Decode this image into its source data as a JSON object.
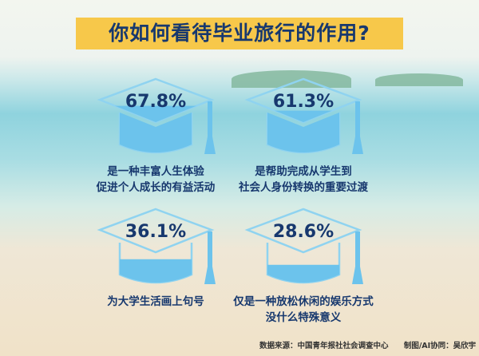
{
  "title": "你如何看待毕业旅行的作用?",
  "chart_data": {
    "type": "bar",
    "title": "你如何看待毕业旅行的作用?",
    "categories": [
      "是一种丰富人生体验 促进个人成长的有益活动",
      "是帮助完成从学生到 社会人身份转换的重要过渡",
      "为大学生活画上句号",
      "仅是一种放松休闲的娱乐方式 没什么特殊意义"
    ],
    "values": [
      67.8,
      61.3,
      36.1,
      28.6
    ],
    "unit": "%",
    "items": [
      {
        "pct": "67.8%",
        "line1": "是一种丰富人生体验",
        "line2": "促进个人成长的有益活动"
      },
      {
        "pct": "61.3%",
        "line1": "是帮助完成从学生到",
        "line2": "社会人身份转换的重要过渡"
      },
      {
        "pct": "36.1%",
        "line1": "为大学生活画上句号",
        "line2": ""
      },
      {
        "pct": "28.6%",
        "line1": "仅是一种放松休闲的娱乐方式",
        "line2": "没什么特殊意义"
      }
    ],
    "colors": {
      "fill": "#6cc3ec",
      "outline": "#8fd3f0",
      "text": "#17386e",
      "banner": "#f7c84a"
    }
  },
  "source": "数据来源：中国青年报社社会调查中心",
  "credit": "制图/AI协同：吴欣宇"
}
